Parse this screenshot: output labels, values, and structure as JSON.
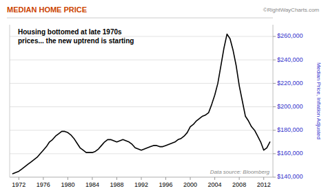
{
  "chart_data": {
    "type": "line",
    "title": "MEDIAN HOME PRICE",
    "y_label": "Median Price, Inflation Adjusted",
    "annotations": [
      "©RightWayCharts.com",
      "Housing bottomed at late 1970s\nprices... the new uptrend is starting",
      "Data source: Bloomberg"
    ],
    "color": "#000000",
    "grid": true,
    "xlim": [
      1970.5,
      2013.5
    ],
    "xticks": [
      1972,
      1976,
      1980,
      1984,
      1988,
      1992,
      1996,
      2000,
      2004,
      2008,
      2012
    ],
    "ylim": [
      140000,
      270000
    ],
    "yticks": [
      {
        "value": 140000,
        "label": "$140,000"
      },
      {
        "value": 160000,
        "label": "$160,000"
      },
      {
        "value": 180000,
        "label": "$180,000"
      },
      {
        "value": 200000,
        "label": "$200,000"
      },
      {
        "value": 220000,
        "label": "$220,000"
      },
      {
        "value": 240000,
        "label": "$240,000"
      },
      {
        "value": 260000,
        "label": "$260,000"
      }
    ],
    "x": [
      1971.0,
      1971.5,
      1972.0,
      1972.5,
      1973.0,
      1973.5,
      1974.0,
      1974.5,
      1975.0,
      1975.5,
      1976.0,
      1976.5,
      1977.0,
      1977.5,
      1978.0,
      1978.5,
      1979.0,
      1979.5,
      1980.0,
      1980.5,
      1981.0,
      1981.5,
      1982.0,
      1982.5,
      1983.0,
      1983.5,
      1984.0,
      1984.5,
      1985.0,
      1985.5,
      1986.0,
      1986.5,
      1987.0,
      1987.5,
      1988.0,
      1988.5,
      1989.0,
      1989.5,
      1990.0,
      1990.5,
      1991.0,
      1991.5,
      1992.0,
      1992.5,
      1993.0,
      1993.5,
      1994.0,
      1994.5,
      1995.0,
      1995.5,
      1996.0,
      1996.5,
      1997.0,
      1997.5,
      1998.0,
      1998.5,
      1999.0,
      1999.5,
      2000.0,
      2000.5,
      2001.0,
      2001.5,
      2002.0,
      2002.5,
      2003.0,
      2003.5,
      2004.0,
      2004.5,
      2005.0,
      2005.5,
      2006.0,
      2006.5,
      2007.0,
      2007.5,
      2008.0,
      2008.5,
      2009.0,
      2009.5,
      2010.0,
      2010.5,
      2011.0,
      2011.5,
      2012.0,
      2012.5,
      2013.0
    ],
    "values": [
      143000,
      144000,
      145000,
      147000,
      149000,
      151000,
      153000,
      155000,
      157000,
      160000,
      163000,
      166000,
      170000,
      172000,
      175000,
      177000,
      179000,
      179000,
      178000,
      176000,
      173000,
      169000,
      165000,
      163000,
      161000,
      161000,
      161000,
      162000,
      164000,
      167000,
      170000,
      172000,
      172000,
      171000,
      170000,
      171000,
      172000,
      171000,
      170000,
      168000,
      165000,
      164000,
      163000,
      164000,
      165000,
      166000,
      167000,
      167000,
      166000,
      166000,
      167000,
      168000,
      169000,
      170000,
      172000,
      173000,
      175000,
      178000,
      183000,
      185000,
      188000,
      190000,
      192000,
      193000,
      195000,
      202000,
      210000,
      220000,
      235000,
      250000,
      262000,
      258000,
      248000,
      235000,
      218000,
      205000,
      192000,
      188000,
      183000,
      180000,
      175000,
      170000,
      163000,
      165000,
      170000
    ]
  }
}
